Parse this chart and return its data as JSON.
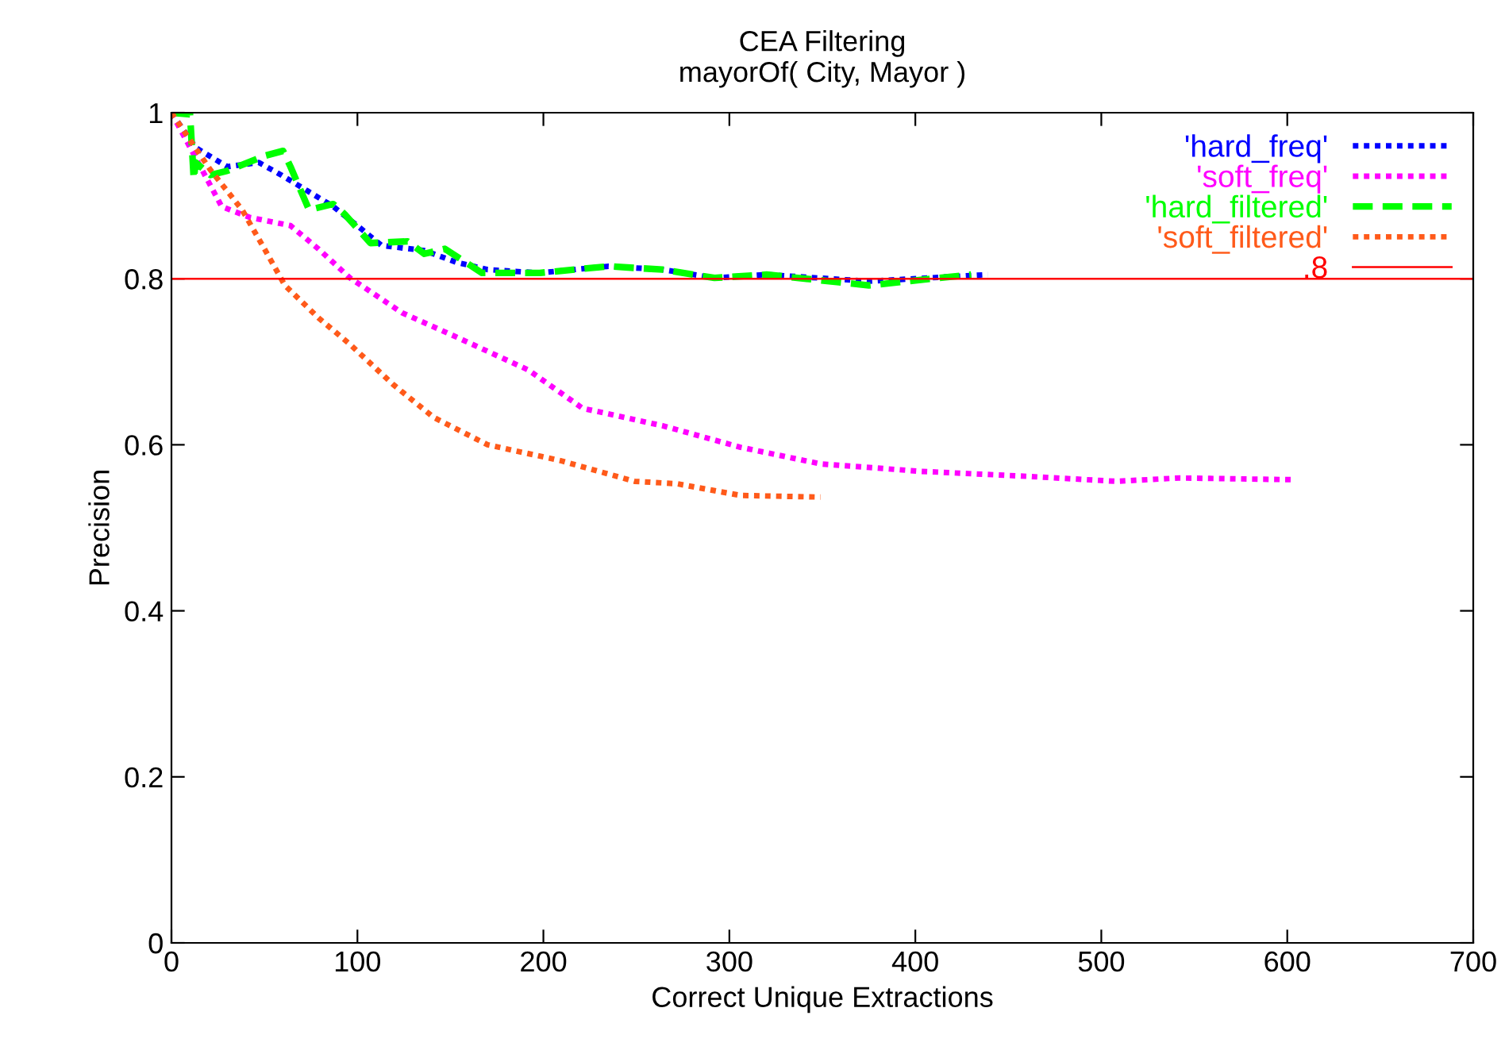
{
  "chart_data": {
    "type": "line",
    "title": "CEA Filtering",
    "subtitle": "mayorOf( City, Mayor )",
    "xlabel": "Correct Unique Extractions",
    "ylabel": "Precision",
    "xlim": [
      0,
      700
    ],
    "xticks": [
      0,
      100,
      200,
      300,
      400,
      500,
      600,
      700
    ],
    "ylim": [
      0,
      1
    ],
    "yticks": [
      0,
      0.2,
      0.4,
      0.6,
      0.8,
      1
    ],
    "grid": false,
    "legend": "top right",
    "series": [
      {
        "name": "'hard_freq'",
        "color": "#0000ff",
        "line_style": "dotted",
        "x": [
          0,
          13,
          30,
          47,
          59,
          73,
          87,
          101,
          113,
          136,
          153,
          170,
          198,
          235,
          264,
          292,
          320,
          375,
          439
        ],
        "values": [
          1,
          0.958,
          0.935,
          0.94,
          0.925,
          0.906,
          0.887,
          0.862,
          0.84,
          0.834,
          0.82,
          0.811,
          0.807,
          0.815,
          0.811,
          0.801,
          0.805,
          0.797,
          0.805
        ]
      },
      {
        "name": "'soft_freq'",
        "color": "#ff00ff",
        "line_style": "dotted",
        "x": [
          0,
          27,
          42,
          64,
          79,
          96,
          124,
          153,
          192,
          221,
          264,
          306,
          349,
          403,
          460,
          508,
          542,
          602
        ],
        "values": [
          1,
          0.887,
          0.874,
          0.864,
          0.836,
          0.801,
          0.759,
          0.73,
          0.69,
          0.644,
          0.623,
          0.597,
          0.577,
          0.568,
          0.562,
          0.556,
          0.56,
          0.558
        ]
      },
      {
        "name": "'hard_filtered'",
        "color": "#00ff00",
        "line_style": "dashed",
        "x": [
          0,
          10,
          12,
          13,
          21,
          30,
          50,
          60,
          64,
          74,
          87,
          93,
          107,
          127,
          136,
          147,
          167,
          198,
          235,
          264,
          292,
          320,
          375,
          430
        ],
        "values": [
          1,
          0.998,
          0.92,
          0.94,
          0.925,
          0.93,
          0.948,
          0.954,
          0.935,
          0.883,
          0.89,
          0.878,
          0.843,
          0.845,
          0.83,
          0.836,
          0.807,
          0.807,
          0.815,
          0.811,
          0.801,
          0.805,
          0.792,
          0.805
        ]
      },
      {
        "name": "'soft_filtered'",
        "color": "#ff5a1a",
        "line_style": "dotted",
        "x": [
          0,
          21,
          38,
          50,
          61,
          79,
          96,
          119,
          141,
          170,
          209,
          249,
          272,
          306,
          349
        ],
        "values": [
          1,
          0.931,
          0.883,
          0.836,
          0.792,
          0.753,
          0.721,
          0.673,
          0.633,
          0.6,
          0.581,
          0.556,
          0.553,
          0.539,
          0.537
        ]
      }
    ],
    "ref_lines": [
      {
        "axis": "y",
        "value": 0.8,
        "label": ".8",
        "color": "#ff0000",
        "line_style": "solid"
      }
    ]
  }
}
